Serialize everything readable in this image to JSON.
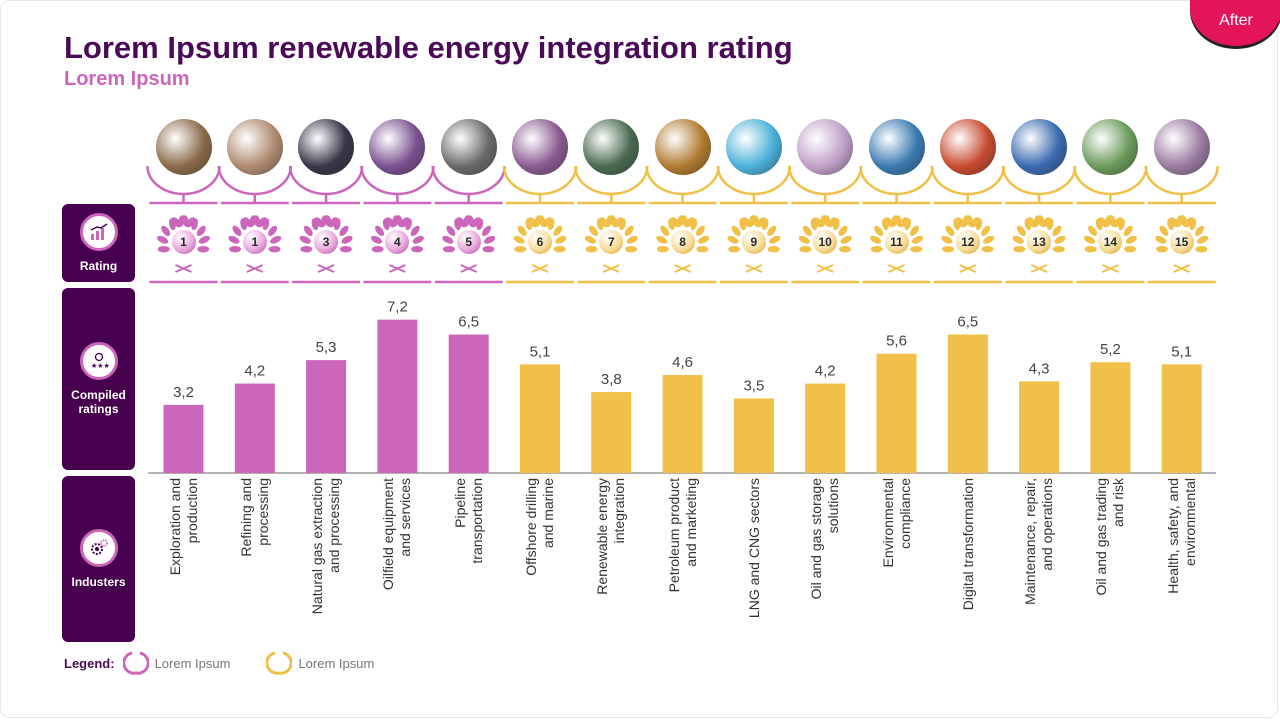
{
  "badge": "After",
  "title": "Lorem Ipsum renewable energy integration rating",
  "subtitle": "Lorem Ipsum",
  "side_panels": {
    "rating": "Rating",
    "compiled": "Compiled ratings",
    "industries": "Industers"
  },
  "legend": {
    "title": "Legend:",
    "items": [
      {
        "label": "Lorem Ipsum",
        "color": "#cc66bb"
      },
      {
        "label": "Lorem Ipsum",
        "color": "#f0c048"
      }
    ]
  },
  "colors": {
    "pink": "#cc66bb",
    "yellow": "#f0c048",
    "purple": "#46004e",
    "accent": "#e4145a"
  },
  "chart_data": {
    "type": "bar",
    "title": "Lorem Ipsum renewable energy integration rating",
    "ylim": [
      0,
      8
    ],
    "categories": [
      "Exploration and production",
      "Refining and processing",
      "Natural gas extraction and processing",
      "Oilfield equipment and services",
      "Pipeline transportation",
      "Offshore drilling and marine",
      "Renewable energy integration",
      "Petroleum product and marketing",
      "LNG and CNG sectors",
      "Oil and gas storage solutions",
      "Environmental compliance",
      "Digital transformation",
      "Maintenance, repair, and operations",
      "Oil and gas trading and risk",
      "Health, safety, and environmental"
    ],
    "label_lines": [
      "Exploration and\nproduction",
      "Refining and\nprocessing",
      "Natural gas extraction\nand processing",
      "Oilfield equipment\nand services",
      "Pipeline\ntransportation",
      "Offshore drilling\nand marine",
      "Renewable energy\nintegration",
      "Petroleum product\nand marketing",
      "LNG and CNG sectors",
      "Oil and gas storage\nsolutions",
      "Environmental\ncompliance",
      "Digital transformation",
      "Maintenance, repair,\nand operations",
      "Oil and gas trading\nand risk",
      "Health, safety, and\nenvironmental"
    ],
    "values": [
      3.2,
      4.2,
      5.3,
      7.2,
      6.5,
      5.1,
      3.8,
      4.6,
      3.5,
      4.2,
      5.6,
      6.5,
      4.3,
      5.2,
      5.1
    ],
    "value_labels": [
      "3,2",
      "4,2",
      "5,3",
      "7,2",
      "6,5",
      "5,1",
      "3,8",
      "4,6",
      "3,5",
      "4,2",
      "5,6",
      "6,5",
      "4,3",
      "5,2",
      "5,1"
    ],
    "ranks": [
      "1",
      "1",
      "3",
      "4",
      "5",
      "6",
      "7",
      "8",
      "9",
      "10",
      "11",
      "12",
      "13",
      "14",
      "15"
    ],
    "groups": [
      "pink",
      "pink",
      "pink",
      "pink",
      "pink",
      "yellow",
      "yellow",
      "yellow",
      "yellow",
      "yellow",
      "yellow",
      "yellow",
      "yellow",
      "yellow",
      "yellow"
    ],
    "photo_colors": [
      "#8a6a4a",
      "#b08a70",
      "#3a3548",
      "#7a5090",
      "#6a6a6a",
      "#8a5a90",
      "#4a6a50",
      "#b07a30",
      "#4ab0d8",
      "#c0a0c8",
      "#3a7ab0",
      "#c84a30",
      "#3a6ab0",
      "#6a9a5a",
      "#9a7aa0"
    ]
  }
}
